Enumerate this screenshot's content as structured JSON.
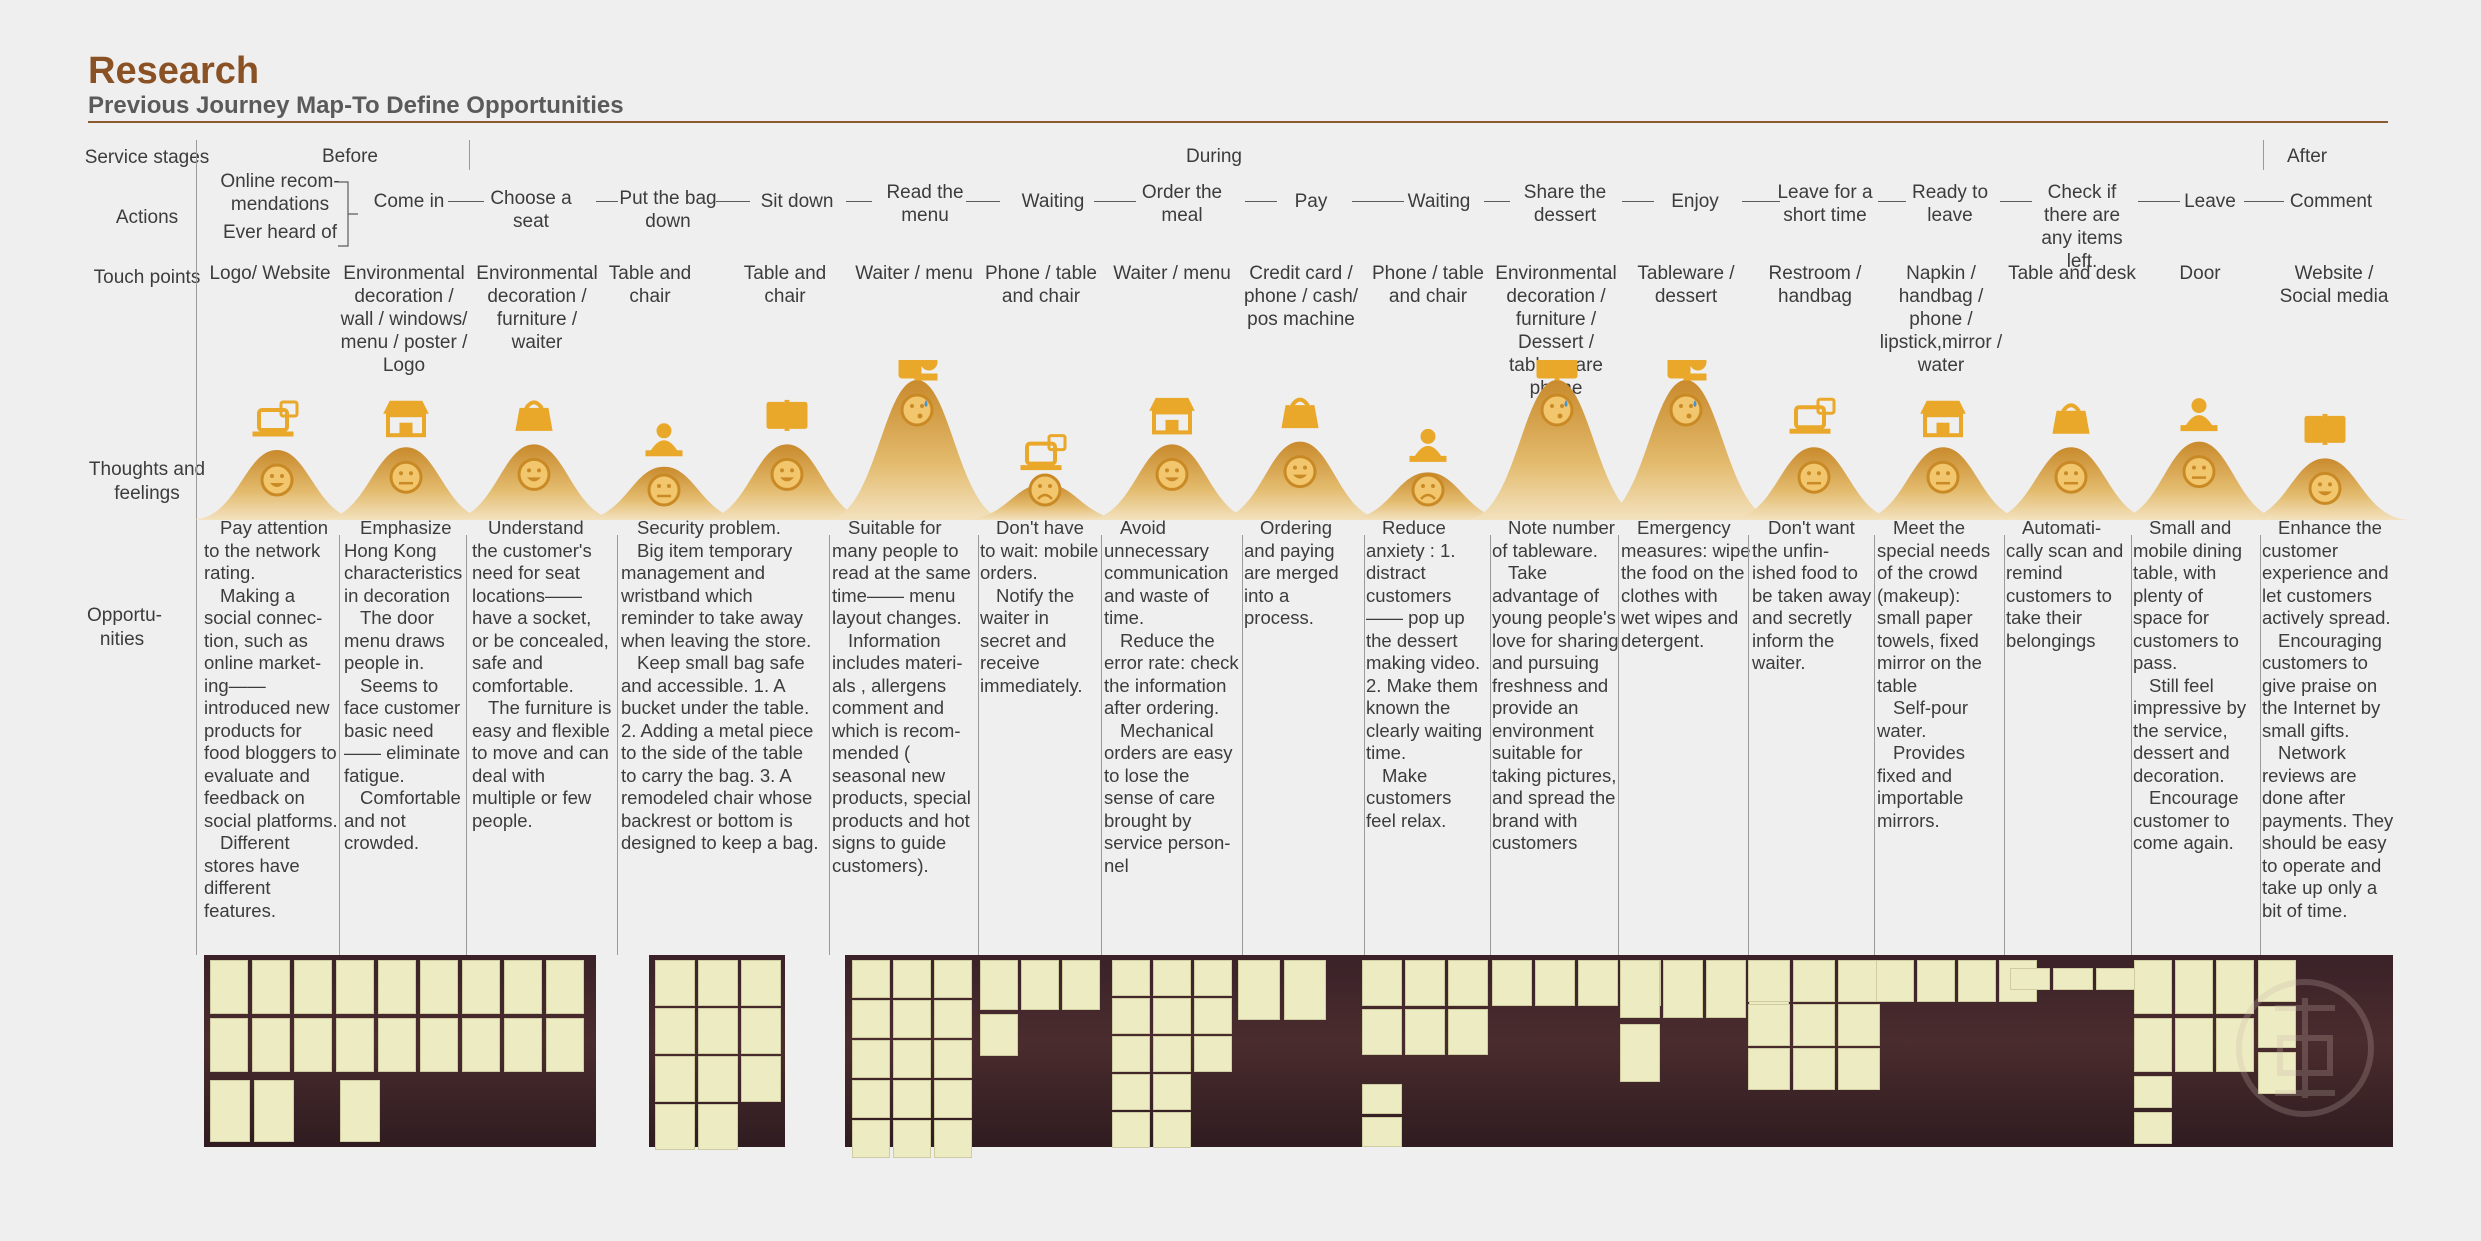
{
  "header": {
    "title": "Research",
    "subtitle": "Previous Journey Map-To Define Opportunities"
  },
  "row_labels": {
    "service_stages": "Service stages",
    "actions": "Actions",
    "touch_points": "Touch points",
    "thoughts": "Thoughts and feelings",
    "opportunities": "Opportu- nities"
  },
  "stages": [
    "Before",
    "During",
    "After"
  ],
  "actions": {
    "pre_a": "Online recom- mendations",
    "pre_b": "Ever heard of",
    "list": [
      "Come in",
      "Choose a seat",
      "Put the bag down",
      "Sit down",
      "Read the menu",
      "Waiting",
      "Order the meal",
      "Pay",
      "Waiting",
      "Share the dessert",
      "Enjoy",
      "Leave for a short time",
      "Ready to leave",
      "Check if there are any items left.",
      "Leave",
      "Comment"
    ]
  },
  "touch_points": [
    "Logo/ Website",
    "Environmental decoration / wall / windows/ menu / poster / Logo",
    "Environmental decoration / furniture / waiter",
    "Table and chair",
    "Table and chair",
    "Waiter / menu",
    "Phone / table and chair",
    "Waiter / menu",
    "Credit card / phone / cash/ pos machine",
    "Phone / table and chair",
    "Environmental decoration / furniture / Dessert / table- ware phone",
    "Tableware / dessert",
    "Restroom / handbag",
    "Napkin / handbag / phone / lipstick,mirror / water",
    "Table and desk",
    "Door",
    "Website / Social media"
  ],
  "emotions": [
    "happy",
    "neutral",
    "happy",
    "neutral",
    "happy",
    "sweat",
    "sad",
    "happy",
    "happy",
    "sad",
    "sweat",
    "sweat",
    "neutral",
    "neutral",
    "neutral",
    "neutral",
    "happy"
  ],
  "opportunities": [
    [
      "Pay attention to the network rating.",
      "Making a social connec- tion, such as online market- ing—— introduced new products for food bloggers to evaluate and feedback on social platforms.",
      "Different stores have different features."
    ],
    [
      "Emphasize Hong Kong characteristics in decoration",
      "The door menu draws people in.",
      "Seems to face customer basic need —— eliminate fatigue.",
      "Comfortable and not crowded."
    ],
    [
      "Understand the customer's need for seat locations—— have a socket, or be concealed, safe and comfortable.",
      "The furniture is easy and flexible to move and can deal with multiple or few people."
    ],
    [
      "Security problem.",
      "Big item temporary management and wristband which reminder to take away when leaving the store.",
      "Keep small bag safe and accessible. 1. A bucket under the table. 2. Adding a metal piece to the side of the table to carry the bag. 3. A remodeled chair whose backrest or bottom is designed to keep a bag."
    ],
    [
      "Suitable for many people to read at the same time—— menu layout changes.",
      "Information includes materi- als , allergens comment and which is recom- mended ( seasonal new products, special products and hot signs to guide customers)."
    ],
    [
      "Don't have to wait: mobile orders.",
      "Notify the waiter in secret and receive immediately."
    ],
    [
      "Avoid unnecessary communication and waste of time.",
      "Reduce the error rate: check the information after ordering.",
      "Mechanical orders are easy to lose the sense of care brought by service person- nel"
    ],
    [
      "Ordering and paying are merged into a process."
    ],
    [
      "Reduce anxiety : 1. distract customers—— pop up the dessert making video. 2. Make them known the clearly waiting time.",
      "Make customers feel relax."
    ],
    [
      "Note number of tableware.",
      "Take advantage of young people's love for sharing and pursuing freshness and provide an environment suitable for taking pictures, and spread the brand with customers"
    ],
    [
      "Emergency measures: wipe the food on the clothes with wet wipes and detergent."
    ],
    [
      "Don't want the unfin- ished food to be taken away and secretly inform the waiter."
    ],
    [
      "Meet the special needs of the crowd (makeup): small paper towels, fixed mirror on the table",
      "Self-pour water.",
      "Provides fixed and importable mirrors."
    ],
    [
      "Automati- cally scan and remind customers to take their belongings"
    ],
    [
      "Small and mobile dining table, with plenty of space for customers to pass.",
      "Still feel impressive by the service, dessert and decoration.",
      "Encourage customer to come again."
    ],
    [
      "Enhance the customer experience and let customers actively spread.",
      "Encouraging customers to give praise on the Internet by small gifts.",
      "Network reviews are done after payments. They should be easy to operate and take up only a bit of time."
    ]
  ],
  "icons": [
    "web-devices-icon",
    "storefront-icon",
    "storefront-icon",
    "handbag-icon",
    "waiter-icon",
    "menu-book-icon",
    "order-hands-icon",
    "cashier-icon",
    "payment-phone-icon",
    "waiting-icon",
    "share-dessert-icon",
    "cutlery-icon",
    "restroom-icon",
    "makeup-icon",
    "waiter-check-icon",
    "leave-store-icon",
    "comment-icon"
  ],
  "colors": {
    "accent": "#8a5124",
    "mountain": "#d9a34a",
    "icon": "#e9a82a",
    "face": "#c98a26"
  }
}
